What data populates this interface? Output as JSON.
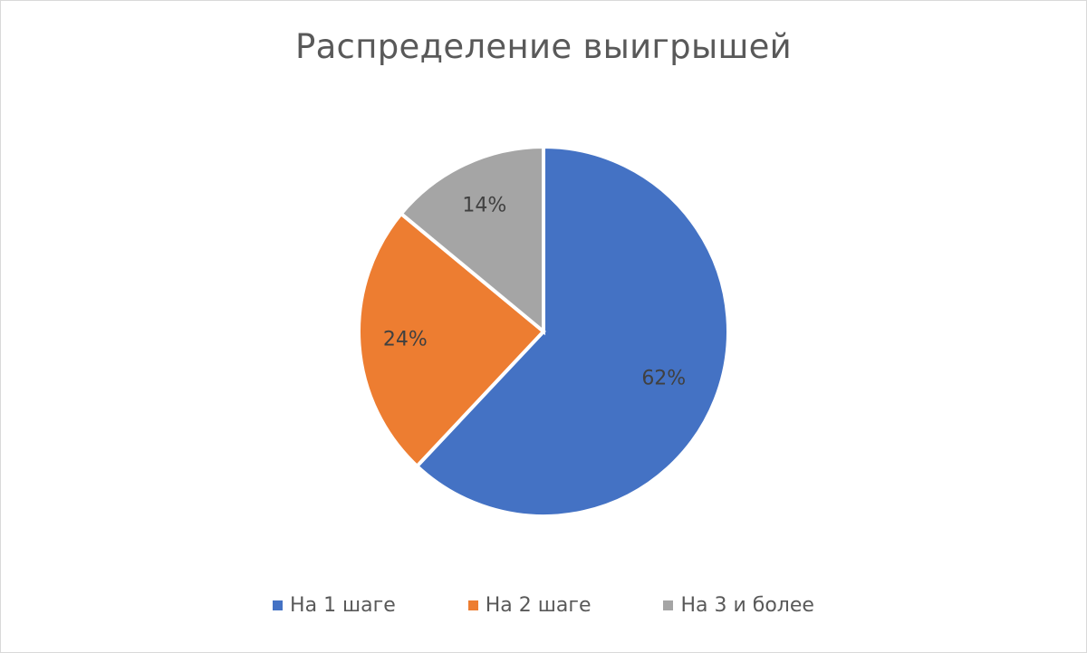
{
  "chart_data": {
    "type": "pie",
    "title": "Распределение выигрышей",
    "categories": [
      "На 1 шаге",
      "На 2 шаге",
      "На 3 и более"
    ],
    "values": [
      62,
      24,
      14
    ],
    "data_labels": [
      "62%",
      "24%",
      "14%"
    ],
    "colors": [
      "#4472c4",
      "#ed7d31",
      "#a5a5a5"
    ],
    "legend_position": "bottom",
    "start_angle": "12 o'clock, clockwise"
  }
}
